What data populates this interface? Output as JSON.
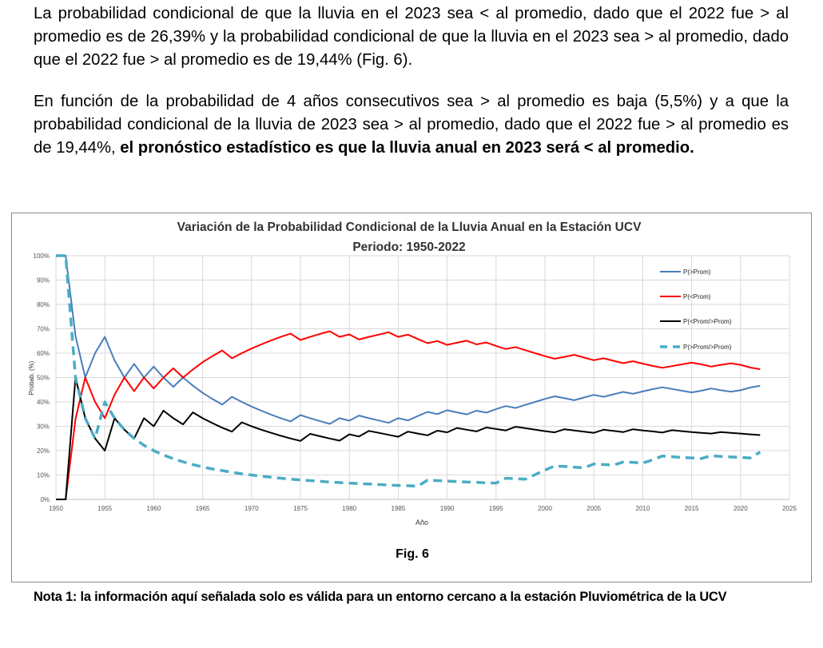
{
  "paragraphs": {
    "p1": "La probabilidad condicional de que la lluvia en el 2023 sea < al promedio, dado que el 2022 fue > al promedio es de 26,39% y la probabilidad condicional de que la lluvia en el 2023 sea > al promedio, dado que el 2022 fue > al promedio es de 19,44% (Fig. 6).",
    "p2_normal": "En función de la probabilidad de 4 años consecutivos sea > al promedio es baja (5,5%) y a que la probabilidad condicional de la lluvia de 2023 sea > al promedio, dado que el 2022 fue > al promedio es de 19,44%, ",
    "p2_bold": "el pronóstico estadístico es que la lluvia anual en 2023 será < al promedio."
  },
  "figure_caption": "Fig. 6",
  "note": "Nota 1: la información aquí señalada solo es válida para un entorno cercano a la estación Pluviométrica de la UCV",
  "chart_data": {
    "type": "line",
    "title": "Variación de la Probabilidad Condicional de la Lluvia Anual en la Estación UCV",
    "subtitle": "Periodo: 1950-2022",
    "xlabel": "Año",
    "ylabel": "Probab. (%)",
    "xlim": [
      1950,
      2025
    ],
    "ylim": [
      0,
      100
    ],
    "x_ticks": [
      "1950",
      "1955",
      "1960",
      "1965",
      "1970",
      "1975",
      "1980",
      "1985",
      "1990",
      "1995",
      "2000",
      "2005",
      "2010",
      "2015",
      "2020",
      "2025"
    ],
    "y_ticks": [
      "0%",
      "10%",
      "20%",
      "30%",
      "40%",
      "50%",
      "60%",
      "70%",
      "80%",
      "90%",
      "100%"
    ],
    "grid": true,
    "legend_position": "top-right",
    "x_start": 1950,
    "series": [
      {
        "name": "P(>Prom)",
        "color": "#4a7ebb",
        "dash": false,
        "values": [
          100,
          100,
          67,
          50,
          60,
          66.7,
          57,
          50,
          55.6,
          50,
          54.5,
          50,
          46.2,
          50,
          46.7,
          43.7,
          41.2,
          38.9,
          42.1,
          40,
          38.1,
          36.4,
          34.8,
          33.3,
          32,
          34.6,
          33.3,
          32.1,
          31,
          33.3,
          32.3,
          34.4,
          33.3,
          32.4,
          31.4,
          33.3,
          32.4,
          34.2,
          35.9,
          35,
          36.6,
          35.7,
          34.9,
          36.4,
          35.6,
          37,
          38.3,
          37.5,
          38.8,
          40,
          41.2,
          42.3,
          41.5,
          40.7,
          41.8,
          42.9,
          42.1,
          43.1,
          44.1,
          43.3,
          44.3,
          45.2,
          46,
          45.3,
          44.6,
          43.9,
          44.6,
          45.5,
          44.8,
          44.2,
          44.8,
          45.9,
          46.6
        ]
      },
      {
        "name": "P(<Prom)",
        "color": "#ff0000",
        "dash": false,
        "values": [
          0,
          0,
          33,
          50,
          40,
          33.3,
          43,
          50,
          44.4,
          50,
          45.5,
          50,
          53.8,
          50,
          53.3,
          56.3,
          58.8,
          61.1,
          57.9,
          60,
          61.9,
          63.6,
          65.2,
          66.7,
          68,
          65.4,
          66.7,
          67.9,
          69,
          66.7,
          67.7,
          65.6,
          66.7,
          67.6,
          68.6,
          66.7,
          67.6,
          65.8,
          64.1,
          65,
          63.4,
          64.3,
          65.1,
          63.6,
          64.4,
          63,
          61.7,
          62.5,
          61.2,
          60,
          58.8,
          57.7,
          58.5,
          59.3,
          58.2,
          57.1,
          57.9,
          56.9,
          55.9,
          56.7,
          55.7,
          54.8,
          54,
          54.7,
          55.4,
          56.1,
          55.4,
          54.5,
          55.2,
          55.8,
          55.2,
          54.1,
          53.4
        ]
      },
      {
        "name": "P(<Prom/>Prom)",
        "color": "#000000",
        "dash": false,
        "values": [
          0,
          0,
          50,
          33.3,
          25,
          20,
          33.3,
          28.6,
          25,
          33.3,
          30,
          36.4,
          33.3,
          30.8,
          35.7,
          33.3,
          31.3,
          29.4,
          27.8,
          31.6,
          30,
          28.6,
          27.3,
          26.1,
          25,
          24,
          26.9,
          25.9,
          25,
          24.1,
          26.7,
          25.8,
          28.1,
          27.3,
          26.5,
          25.7,
          27.8,
          27,
          26.3,
          28.2,
          27.5,
          29.3,
          28.6,
          27.9,
          29.5,
          28.9,
          28.3,
          29.8,
          29.2,
          28.6,
          28,
          27.5,
          28.8,
          28.3,
          27.8,
          27.3,
          28.6,
          28.1,
          27.6,
          28.8,
          28.3,
          27.9,
          27.4,
          28.4,
          28,
          27.6,
          27.3,
          27,
          27.6,
          27.3,
          27,
          26.7,
          26.4
        ]
      },
      {
        "name": "P(>Prom/>Prom)",
        "color": "#4bacc6",
        "dash": true,
        "values": [
          100,
          100,
          50,
          33.3,
          25,
          40,
          33.3,
          28.6,
          25,
          22.2,
          20,
          18.2,
          16.7,
          15.4,
          14.3,
          13.3,
          12.5,
          11.8,
          11.1,
          10.5,
          10,
          9.5,
          9.1,
          8.7,
          8.3,
          8,
          7.7,
          7.4,
          7.1,
          6.9,
          6.7,
          6.5,
          6.3,
          6.1,
          5.9,
          5.7,
          5.6,
          5.4,
          7.9,
          7.7,
          7.5,
          7.3,
          7.1,
          7,
          6.8,
          6.7,
          8.7,
          8.5,
          8.3,
          10.2,
          12,
          13.7,
          13.5,
          13.2,
          13,
          14.5,
          14.3,
          14.1,
          15.3,
          15.2,
          14.9,
          16.2,
          17.8,
          17.5,
          17.2,
          17,
          16.8,
          17.9,
          17.6,
          17.4,
          17.2,
          17,
          19.4
        ]
      }
    ]
  }
}
